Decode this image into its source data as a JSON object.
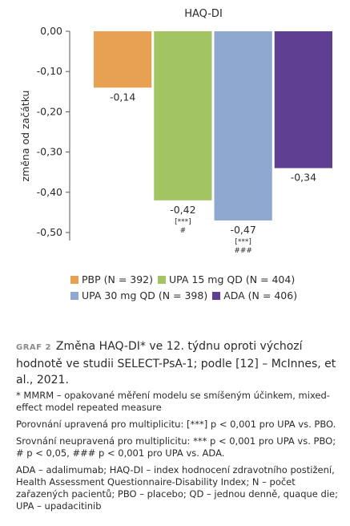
{
  "chart_data": {
    "type": "bar",
    "title": "HAQ-DI",
    "ylabel": "změna od začátku",
    "ylim": [
      -0.52,
      0.0
    ],
    "yticks": [
      "0,00",
      "-0,10",
      "-0,20",
      "-0,30",
      "-0,40",
      "-0,50"
    ],
    "ytick_values": [
      0.0,
      -0.1,
      -0.2,
      -0.3,
      -0.4,
      -0.5
    ],
    "grid": false,
    "categories": [
      "PBP (N = 392)",
      "UPA 15 mg QD (N = 404)",
      "UPA 30 mg QD (N = 398)",
      "ADA (N = 406)"
    ],
    "values": [
      -0.14,
      -0.42,
      -0.47,
      -0.34
    ],
    "value_labels": [
      "-0,14",
      "-0,42",
      "-0,47",
      "-0,34"
    ],
    "annotations": [
      [],
      [
        "[***]",
        "#"
      ],
      [
        "[***]",
        "###"
      ],
      []
    ],
    "colors": [
      "#e8a052",
      "#a3c463",
      "#8fa8cf",
      "#5e3f91"
    ],
    "legend_position": "bottom"
  },
  "caption": {
    "tag": "GRAF 2",
    "text": "Změna HAQ-DI* ve 12. týdnu oproti výchozí hodnotě ve studii SELECT-PsA-1; podle [12] – McInnes, et al., 2021."
  },
  "notes": {
    "mmrm": "* MMRM – opakované měření modelu se smíšeným účinkem, mixed-effect model repeated measure",
    "adjusted": "Porovnání upravená pro multiplicitu: [***] p < 0,001 pro UPA vs. PBO.",
    "unadjusted": "Srovnání neupravená pro multiplicitu: *** p < 0,001 pro UPA vs. PBO; # p < 0,05, ### p < 0,001 pro UPA vs. ADA.",
    "abbreviations": "ADA – adalimumab; HAQ-DI – index hodnocení zdravotního postižení, Health Assessment Questionnaire-Disability Index; N – počet zařazených pacientů; PBO – placebo; QD – jednou denně, quaque die; UPA – upadacitinib"
  }
}
